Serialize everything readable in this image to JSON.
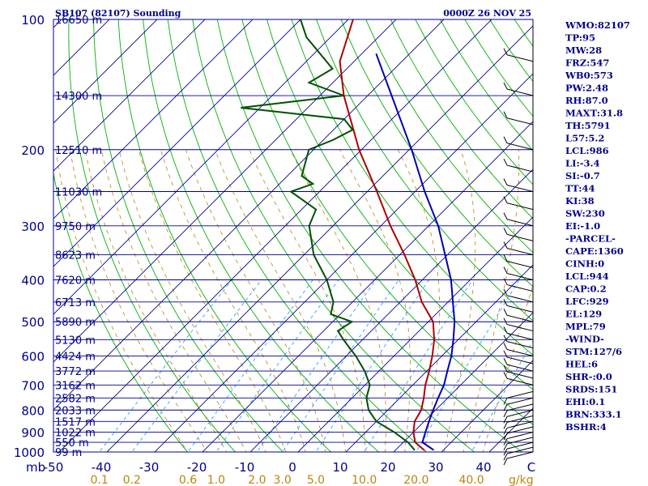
{
  "header": {
    "station": "SB107 (82107) Sounding",
    "time": "0000Z 26 NOV 25"
  },
  "axes": {
    "pressure_ticks": [
      "100",
      "200",
      "300",
      "400",
      "500",
      "600",
      "700",
      "800",
      "900",
      "1000"
    ],
    "pressure_unit": "mb",
    "temp_ticks": [
      "-50",
      "-40",
      "-30",
      "-20",
      "-10",
      "0",
      "10",
      "20",
      "30",
      "40",
      "C"
    ],
    "mixing_ratio_ticks": [
      "0.1",
      "0.2",
      "0.6",
      "1.0",
      "2.0",
      "3.0",
      "5.0",
      "10.0",
      "20.0",
      "40.0"
    ],
    "mixing_ratio_unit": "g/kg"
  },
  "heights": [
    {
      "p": 100,
      "label": "16650 m"
    },
    {
      "p": 150,
      "label": "14300 m"
    },
    {
      "p": 200,
      "label": "12510 m"
    },
    {
      "p": 250,
      "label": "11030 m"
    },
    {
      "p": 300,
      "label": "9750 m"
    },
    {
      "p": 350,
      "label": "8623 m"
    },
    {
      "p": 400,
      "label": "7620 m"
    },
    {
      "p": 450,
      "label": "6713 m"
    },
    {
      "p": 500,
      "label": "5890 m"
    },
    {
      "p": 550,
      "label": "5130 m"
    },
    {
      "p": 600,
      "label": "4424 m"
    },
    {
      "p": 650,
      "label": "3772 m"
    },
    {
      "p": 700,
      "label": "3162 m"
    },
    {
      "p": 750,
      "label": "2582 m"
    },
    {
      "p": 800,
      "label": "2033 m"
    },
    {
      "p": 850,
      "label": "1517 m"
    },
    {
      "p": 900,
      "label": "1022 m"
    },
    {
      "p": 950,
      "label": "550 m"
    },
    {
      "p": 1000,
      "label": "99 m"
    }
  ],
  "indices": [
    "WMO:82107",
    "TP:95",
    "MW:28",
    "FRZ:547",
    "WB0:573",
    "PW:2.48",
    "RH:87.0",
    "MAXT:31.8",
    "TH:5791",
    "L57:5.2",
    "LCL:986",
    "LI:-3.4",
    "SI:-0.7",
    "TT:44",
    "KI:38",
    "SW:230",
    "EI:-1.0",
    "-PARCEL-",
    "CAPE:1360",
    "CINH:0",
    "LCL:944",
    "CAP:0.2",
    "LFC:929",
    "EL:129",
    "MPL:79",
    "-WIND-",
    "STM:127/6",
    "HEL:6",
    "SHR-:0.0",
    "SRDS:151",
    "EHI:0.1",
    "BRN:333.1",
    "BSHR:4"
  ],
  "chart_data": {
    "type": "line",
    "chart_kind": "skew-T log-P",
    "pressure_range": [
      1000,
      100
    ],
    "temperature_range": [
      -50,
      50
    ],
    "colors": {
      "temperature": "#b00000",
      "dewpoint": "#005000",
      "parcel": "#0000b0",
      "isobar": "#00008b",
      "isotherm": "#00008b",
      "dry_adiabat": "#00b000",
      "moist_adiabat": "#b8860b",
      "mixing_ratio": "#2aa0ff"
    },
    "series": [
      {
        "key": "temperature",
        "points": [
          [
            990,
            26
          ],
          [
            950,
            22.5
          ],
          [
            900,
            20
          ],
          [
            850,
            18
          ],
          [
            800,
            17
          ],
          [
            750,
            15
          ],
          [
            700,
            12.6
          ],
          [
            650,
            10.5
          ],
          [
            600,
            8
          ],
          [
            550,
            5
          ],
          [
            500,
            1
          ],
          [
            450,
            -5.5
          ],
          [
            400,
            -11.5
          ],
          [
            350,
            -19
          ],
          [
            300,
            -28
          ],
          [
            250,
            -38
          ],
          [
            200,
            -50.5
          ],
          [
            150,
            -65
          ],
          [
            125,
            -73
          ],
          [
            100,
            -79
          ]
        ]
      },
      {
        "key": "dewpoint",
        "points": [
          [
            990,
            24
          ],
          [
            950,
            21
          ],
          [
            900,
            16
          ],
          [
            850,
            10
          ],
          [
            800,
            6
          ],
          [
            750,
            3
          ],
          [
            700,
            1
          ],
          [
            650,
            -3
          ],
          [
            600,
            -8
          ],
          [
            550,
            -14
          ],
          [
            525,
            -17
          ],
          [
            500,
            -16
          ],
          [
            480,
            -22
          ],
          [
            450,
            -24
          ],
          [
            400,
            -30
          ],
          [
            350,
            -38
          ],
          [
            300,
            -45
          ],
          [
            275,
            -47
          ],
          [
            250,
            -56
          ],
          [
            240,
            -53
          ],
          [
            230,
            -57
          ],
          [
            200,
            -61
          ],
          [
            190,
            -58
          ],
          [
            180,
            -56
          ],
          [
            170,
            -60
          ],
          [
            160,
            -84
          ],
          [
            150,
            -65
          ],
          [
            140,
            -75
          ],
          [
            130,
            -73
          ],
          [
            110,
            -85
          ],
          [
            100,
            -90
          ]
        ]
      },
      {
        "key": "parcel",
        "points": [
          [
            990,
            28
          ],
          [
            950,
            24
          ],
          [
            900,
            22.5
          ],
          [
            850,
            21
          ],
          [
            800,
            19.5
          ],
          [
            750,
            18
          ],
          [
            700,
            16.5
          ],
          [
            650,
            14.3
          ],
          [
            600,
            12
          ],
          [
            550,
            9
          ],
          [
            500,
            5.5
          ],
          [
            450,
            1
          ],
          [
            400,
            -4
          ],
          [
            350,
            -10.5
          ],
          [
            300,
            -18
          ],
          [
            250,
            -28
          ],
          [
            200,
            -39.5
          ],
          [
            150,
            -55
          ],
          [
            120,
            -67
          ]
        ]
      }
    ]
  }
}
